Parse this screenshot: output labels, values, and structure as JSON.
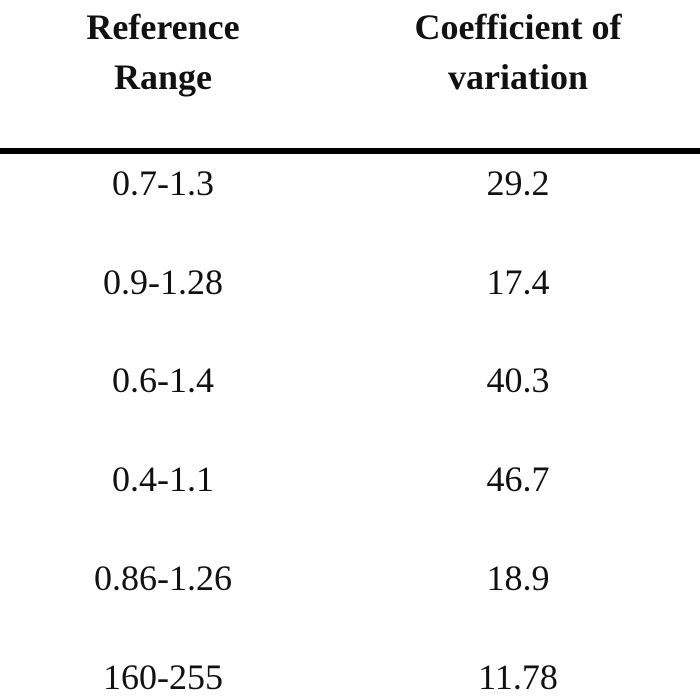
{
  "table": {
    "header": [
      "Reference Range",
      "Coefficient of variation"
    ],
    "rows": [
      [
        "0.7-1.3",
        29.2
      ],
      [
        "0.9-1.28",
        17.4
      ],
      [
        "0.6-1.4",
        40.3
      ],
      [
        "0.4-1.1",
        46.7
      ],
      [
        "0.86-1.26",
        18.9
      ],
      [
        "160-255",
        11.78
      ]
    ]
  }
}
